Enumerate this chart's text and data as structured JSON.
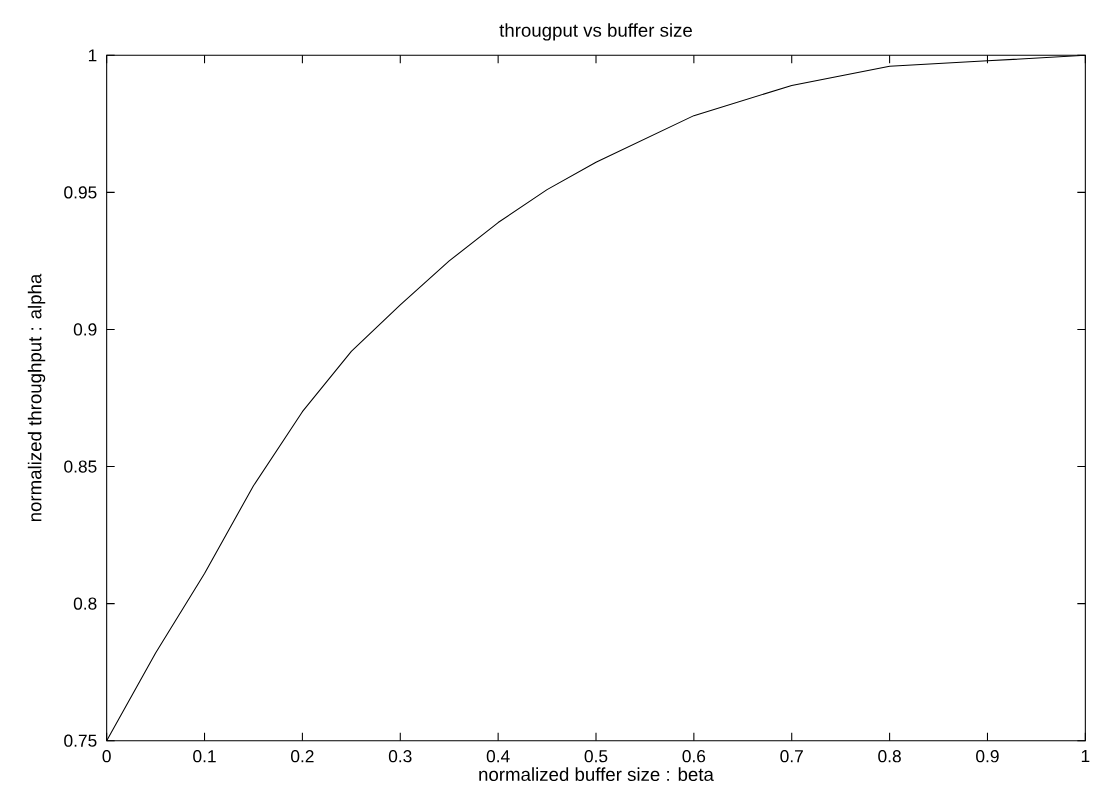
{
  "chart_data": {
    "type": "line",
    "title": "througput vs buffer size",
    "xlabel": "normalized buffer size : beta",
    "ylabel": "normalized throughput : alpha",
    "x": [
      0,
      0.05,
      0.1,
      0.15,
      0.2,
      0.25,
      0.3,
      0.35,
      0.4,
      0.45,
      0.5,
      0.6,
      0.7,
      0.8,
      0.9,
      1
    ],
    "series": [
      {
        "color": "#000000",
        "values": [
          0.75,
          0.782,
          0.811,
          0.843,
          0.87,
          0.892,
          0.909,
          0.925,
          0.939,
          0.951,
          0.961,
          0.978,
          0.989,
          0.996,
          0.998,
          1.0
        ]
      }
    ],
    "xlim": [
      0,
      1
    ],
    "ylim": [
      0.75,
      1
    ],
    "xticks": [
      0,
      0.1,
      0.2,
      0.3,
      0.4,
      0.5,
      0.6,
      0.7,
      0.8,
      0.9,
      1
    ],
    "yticks": [
      0.75,
      0.8,
      0.85,
      0.9,
      0.95,
      1
    ],
    "grid": false,
    "legend": false,
    "marker": "none",
    "line_style": "solid"
  }
}
